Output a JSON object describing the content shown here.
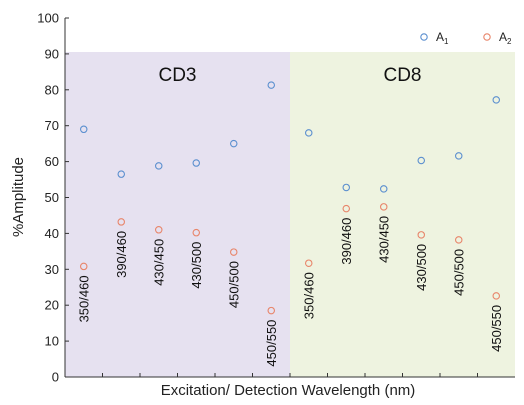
{
  "chart_data": {
    "type": "scatter",
    "xlabel": "Excitation/ Detection Wavelength (nm)",
    "ylabel": "%Amplitude",
    "ylim": [
      0,
      100
    ],
    "yticks": [
      0,
      10,
      20,
      30,
      40,
      50,
      60,
      70,
      80,
      90,
      100
    ],
    "grid": false,
    "legend_position": "top-right",
    "legend": [
      {
        "main": "A",
        "sub": "1"
      },
      {
        "main": "A",
        "sub": "2"
      }
    ],
    "panels": [
      {
        "label": "CD3",
        "background": "#e6e1f0",
        "categories": [
          "350/460",
          "390/460",
          "430/450",
          "430/500",
          "450/500",
          "450/550"
        ],
        "series": [
          {
            "values": [
              69,
              56.5,
              58.8,
              59.6,
              65,
              81.3
            ],
            "color": "#5b8fcf"
          },
          {
            "values": [
              30.8,
              43.2,
              41,
              40.2,
              34.8,
              18.5
            ],
            "color": "#e8856a"
          }
        ]
      },
      {
        "label": "CD8",
        "background": "#eef3e0",
        "categories": [
          "350/460",
          "390/460",
          "430/450",
          "430/500",
          "450/500",
          "450/550"
        ],
        "series": [
          {
            "values": [
              68,
              52.8,
              52.4,
              60.3,
              61.6,
              77.2
            ],
            "color": "#5b8fcf"
          },
          {
            "values": [
              31.7,
              46.9,
              47.4,
              39.6,
              38.2,
              22.6
            ],
            "color": "#e8856a"
          }
        ]
      }
    ]
  }
}
